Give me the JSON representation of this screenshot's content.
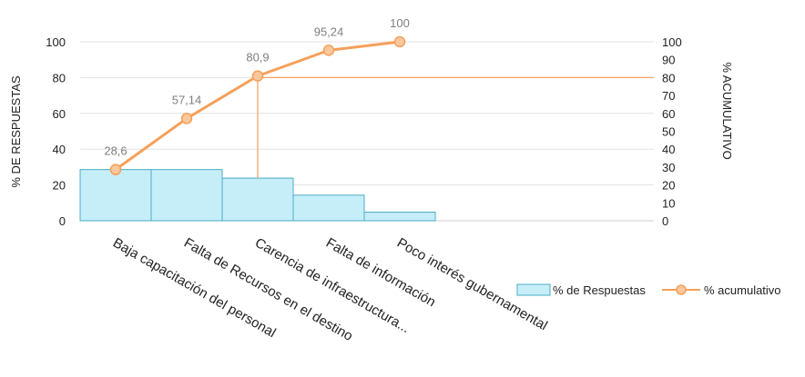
{
  "chart_data": {
    "type": "bar",
    "categories": [
      "Baja capacitación del personal",
      "Falta de Recursos en el destino",
      "Carencia de infraestructura...",
      "Falta de información",
      "Poco interés gubernamental"
    ],
    "series": [
      {
        "name": "% de Respuestas",
        "type": "bar",
        "axis": "left",
        "values": [
          28.6,
          28.6,
          23.8,
          14.3,
          4.8
        ],
        "color": "#c6eef9",
        "stroke": "#4bacc6"
      },
      {
        "name": "% acumulativo",
        "type": "line",
        "axis": "right",
        "values": [
          28.6,
          57.14,
          80.9,
          95.24,
          100
        ],
        "labels": [
          "28,6",
          "57,14",
          "80,9",
          "95,24",
          "100"
        ],
        "color": "#f5a05a",
        "marker_fill": "#fbc79d"
      }
    ],
    "ylabel": "% DE RESPUESTAS",
    "y2label": "% ACUMULATIVO",
    "ylim": [
      0,
      100
    ],
    "y2lim": [
      0,
      100
    ],
    "yticks": [
      "0",
      "20",
      "40",
      "60",
      "80",
      "100"
    ],
    "y2ticks": [
      "0",
      "10",
      "20",
      "30",
      "40",
      "50",
      "60",
      "70",
      "80",
      "90",
      "100"
    ],
    "reference_value": 80,
    "grid": true,
    "legend_position": "bottom-right"
  }
}
